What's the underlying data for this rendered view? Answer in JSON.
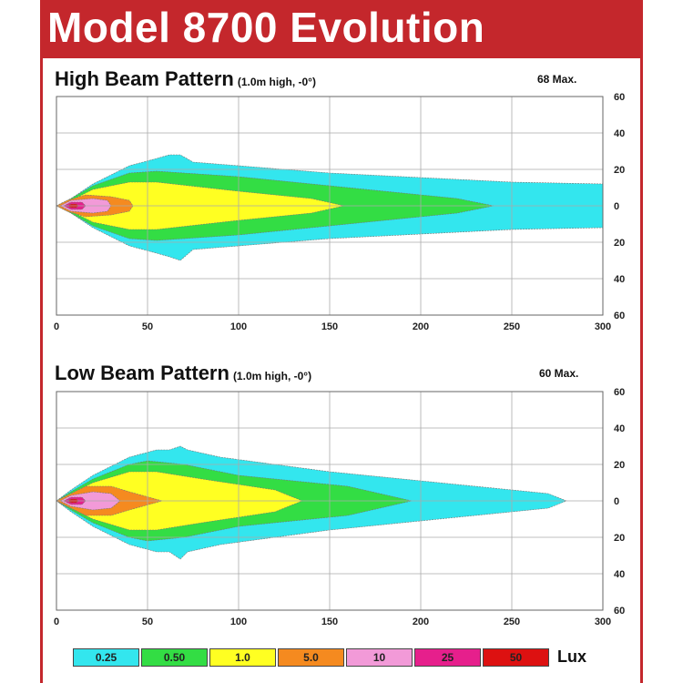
{
  "header": {
    "title": "Model 8700 Evolution",
    "title_color": "#c4272c"
  },
  "chart_data": [
    {
      "type": "area",
      "title": "High Beam Pattern",
      "subtitle": "(1.0m high, -0°)",
      "max_label": "68 Max.",
      "xlim": [
        0,
        300
      ],
      "ylim": [
        -60,
        60
      ],
      "x_ticks": [
        "0",
        "50",
        "100",
        "150",
        "200",
        "250",
        "300"
      ],
      "y_ticks": [
        "60",
        "40",
        "20",
        "0",
        "20",
        "40",
        "60"
      ],
      "grid": true,
      "contours": [
        {
          "lux": "0.25",
          "color": "#33e6ee",
          "points": [
            [
              0,
              0
            ],
            [
              8,
              4
            ],
            [
              20,
              12
            ],
            [
              40,
              22
            ],
            [
              55,
              26
            ],
            [
              62,
              28
            ],
            [
              68,
              28
            ],
            [
              75,
              24
            ],
            [
              150,
              18
            ],
            [
              250,
              13
            ],
            [
              300,
              12
            ],
            [
              300,
              -12
            ],
            [
              250,
              -13
            ],
            [
              150,
              -18
            ],
            [
              75,
              -24
            ],
            [
              68,
              -30
            ],
            [
              62,
              -28
            ],
            [
              55,
              -26
            ],
            [
              40,
              -22
            ],
            [
              20,
              -12
            ],
            [
              8,
              -4
            ]
          ]
        },
        {
          "lux": "0.50",
          "color": "#33dd44",
          "points": [
            [
              0,
              0
            ],
            [
              8,
              4
            ],
            [
              20,
              11
            ],
            [
              40,
              18
            ],
            [
              55,
              19
            ],
            [
              100,
              16
            ],
            [
              160,
              10
            ],
            [
              220,
              4
            ],
            [
              240,
              0
            ],
            [
              220,
              -4
            ],
            [
              160,
              -10
            ],
            [
              100,
              -16
            ],
            [
              55,
              -19
            ],
            [
              40,
              -18
            ],
            [
              20,
              -11
            ],
            [
              8,
              -4
            ]
          ]
        },
        {
          "lux": "1.0",
          "color": "#ffff22",
          "points": [
            [
              0,
              0
            ],
            [
              8,
              3
            ],
            [
              20,
              9
            ],
            [
              40,
              13
            ],
            [
              55,
              13
            ],
            [
              100,
              8
            ],
            [
              140,
              4
            ],
            [
              158,
              0
            ],
            [
              140,
              -4
            ],
            [
              100,
              -8
            ],
            [
              55,
              -13
            ],
            [
              40,
              -13
            ],
            [
              20,
              -9
            ],
            [
              8,
              -3
            ]
          ]
        },
        {
          "lux": "5.0",
          "color": "#f58a1f",
          "points": [
            [
              0,
              0
            ],
            [
              6,
              3
            ],
            [
              16,
              6
            ],
            [
              30,
              5
            ],
            [
              40,
              3
            ],
            [
              42,
              0
            ],
            [
              40,
              -3
            ],
            [
              30,
              -5
            ],
            [
              16,
              -6
            ],
            [
              6,
              -3
            ]
          ]
        },
        {
          "lux": "10",
          "color": "#f29ad8",
          "points": [
            [
              2,
              0
            ],
            [
              8,
              3
            ],
            [
              20,
              4
            ],
            [
              28,
              3
            ],
            [
              30,
              0
            ],
            [
              28,
              -3
            ],
            [
              20,
              -4
            ],
            [
              8,
              -3
            ]
          ]
        },
        {
          "lux": "25",
          "color": "#e61f8c",
          "points": [
            [
              4,
              0
            ],
            [
              8,
              2
            ],
            [
              14,
              2
            ],
            [
              16,
              0
            ],
            [
              14,
              -2
            ],
            [
              8,
              -2
            ]
          ]
        },
        {
          "lux": "50",
          "color": "#dd1111",
          "points": [
            [
              6,
              0
            ],
            [
              8,
              1
            ],
            [
              11,
              1
            ],
            [
              12,
              0
            ],
            [
              11,
              -1
            ],
            [
              8,
              -1
            ]
          ]
        }
      ]
    },
    {
      "type": "area",
      "title": "Low Beam Pattern",
      "subtitle": "(1.0m high, -0°)",
      "max_label": "60 Max.",
      "xlim": [
        0,
        300
      ],
      "ylim": [
        -60,
        60
      ],
      "x_ticks": [
        "0",
        "50",
        "100",
        "150",
        "200",
        "250",
        "300"
      ],
      "y_ticks": [
        "60",
        "40",
        "20",
        "0",
        "20",
        "40",
        "60"
      ],
      "grid": true,
      "contours": [
        {
          "lux": "0.25",
          "color": "#33e6ee",
          "points": [
            [
              0,
              0
            ],
            [
              8,
              6
            ],
            [
              20,
              14
            ],
            [
              40,
              24
            ],
            [
              55,
              28
            ],
            [
              62,
              28
            ],
            [
              68,
              30
            ],
            [
              72,
              28
            ],
            [
              90,
              24
            ],
            [
              150,
              16
            ],
            [
              230,
              8
            ],
            [
              270,
              4
            ],
            [
              280,
              0
            ],
            [
              270,
              -4
            ],
            [
              230,
              -8
            ],
            [
              150,
              -16
            ],
            [
              90,
              -24
            ],
            [
              72,
              -28
            ],
            [
              68,
              -32
            ],
            [
              62,
              -28
            ],
            [
              55,
              -28
            ],
            [
              40,
              -24
            ],
            [
              20,
              -14
            ],
            [
              8,
              -6
            ]
          ]
        },
        {
          "lux": "0.50",
          "color": "#33dd44",
          "points": [
            [
              0,
              0
            ],
            [
              8,
              5
            ],
            [
              20,
              12
            ],
            [
              40,
              20
            ],
            [
              50,
              22
            ],
            [
              70,
              20
            ],
            [
              100,
              14
            ],
            [
              160,
              8
            ],
            [
              195,
              0
            ],
            [
              160,
              -8
            ],
            [
              100,
              -14
            ],
            [
              70,
              -20
            ],
            [
              50,
              -22
            ],
            [
              40,
              -20
            ],
            [
              20,
              -12
            ],
            [
              8,
              -5
            ]
          ]
        },
        {
          "lux": "1.0",
          "color": "#ffff22",
          "points": [
            [
              0,
              0
            ],
            [
              8,
              4
            ],
            [
              20,
              10
            ],
            [
              40,
              16
            ],
            [
              55,
              16
            ],
            [
              80,
              12
            ],
            [
              120,
              6
            ],
            [
              135,
              0
            ],
            [
              120,
              -6
            ],
            [
              80,
              -12
            ],
            [
              55,
              -16
            ],
            [
              40,
              -16
            ],
            [
              20,
              -10
            ],
            [
              8,
              -4
            ]
          ]
        },
        {
          "lux": "5.0",
          "color": "#f58a1f",
          "points": [
            [
              0,
              0
            ],
            [
              6,
              3
            ],
            [
              16,
              8
            ],
            [
              30,
              8
            ],
            [
              40,
              5
            ],
            [
              58,
              0
            ],
            [
              40,
              -5
            ],
            [
              30,
              -8
            ],
            [
              16,
              -8
            ],
            [
              6,
              -3
            ]
          ]
        },
        {
          "lux": "10",
          "color": "#f29ad8",
          "points": [
            [
              2,
              0
            ],
            [
              8,
              3
            ],
            [
              20,
              5
            ],
            [
              30,
              4
            ],
            [
              35,
              0
            ],
            [
              30,
              -4
            ],
            [
              20,
              -5
            ],
            [
              8,
              -3
            ]
          ]
        },
        {
          "lux": "25",
          "color": "#e61f8c",
          "points": [
            [
              4,
              0
            ],
            [
              8,
              2
            ],
            [
              14,
              2
            ],
            [
              16,
              0
            ],
            [
              14,
              -2
            ],
            [
              8,
              -2
            ]
          ]
        },
        {
          "lux": "50",
          "color": "#dd1111",
          "points": [
            [
              6,
              0
            ],
            [
              8,
              1
            ],
            [
              11,
              1
            ],
            [
              12,
              0
            ],
            [
              11,
              -1
            ],
            [
              8,
              -1
            ]
          ]
        }
      ]
    }
  ],
  "legend": {
    "items": [
      {
        "label": "0.25",
        "color": "#33e6ee"
      },
      {
        "label": "0.50",
        "color": "#33dd44"
      },
      {
        "label": "1.0",
        "color": "#ffff22"
      },
      {
        "label": "5.0",
        "color": "#f58a1f"
      },
      {
        "label": "10",
        "color": "#f29ad8"
      },
      {
        "label": "25",
        "color": "#e61f8c"
      },
      {
        "label": "50",
        "color": "#dd1111"
      }
    ],
    "unit": "Lux"
  }
}
